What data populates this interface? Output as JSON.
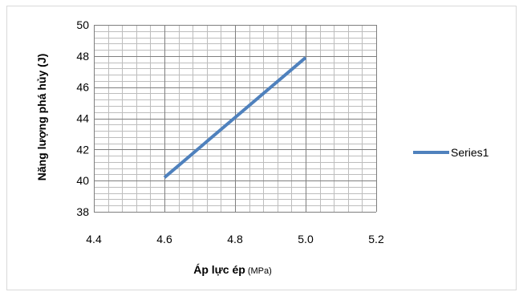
{
  "chart_data": {
    "type": "line",
    "title": "",
    "xlabel": "Áp lực ép",
    "xlabel_unit": "(MPa)",
    "ylabel": "Năng lượng phá hủy (J)",
    "xlim": [
      4.4,
      5.2
    ],
    "ylim": [
      38,
      50
    ],
    "x_ticks": [
      "4.4",
      "4.6",
      "4.8",
      "5.0",
      "5.2"
    ],
    "y_ticks": [
      "38",
      "40",
      "42",
      "44",
      "46",
      "48",
      "50"
    ],
    "x_major_step": 0.2,
    "x_minor_step": 0.04,
    "y_major_step": 2,
    "y_minor_step": 0.4,
    "grid": true,
    "legend_position": "right",
    "series": [
      {
        "name": "Series1",
        "x": [
          4.6,
          5.0
        ],
        "y": [
          40.2,
          47.9
        ],
        "color": "#4f81bd"
      }
    ]
  }
}
